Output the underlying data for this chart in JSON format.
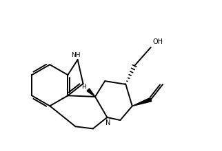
{
  "bg_color": "#ffffff",
  "lw": 1.4,
  "figsize": [
    3.22,
    2.2
  ],
  "dpi": 100,
  "xlim": [
    0,
    10
  ],
  "ylim": [
    0,
    6.9
  ]
}
